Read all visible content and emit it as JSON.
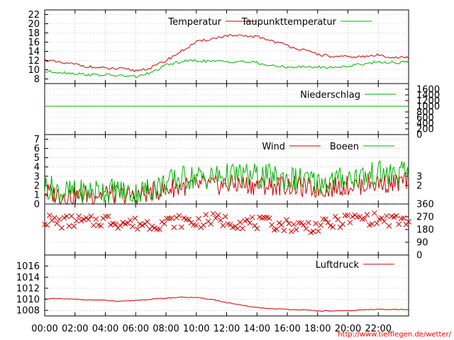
{
  "colors": {
    "red": "#cc0000",
    "green": "#00b000",
    "grid": "#999999",
    "url": "#ff0000"
  },
  "source_url": "http://www.tiefflegen.de/wetter/",
  "x_axis": {
    "domain_hours": [
      0,
      24
    ],
    "tick_labels": [
      "00:00",
      "02:00",
      "04:00",
      "06:00",
      "08:00",
      "10:00",
      "12:00",
      "14:00",
      "16:00",
      "18:00",
      "20:00",
      "22:00"
    ]
  },
  "chart_data": [
    {
      "type": "line",
      "title": "",
      "ylabel": "",
      "ylim": [
        7,
        23
      ],
      "y_ticks": [
        8,
        10,
        12,
        14,
        16,
        18,
        20,
        22
      ],
      "grid": true,
      "legend_position": "top-right",
      "series": [
        {
          "name": "Temperatur",
          "color": "#cc0000",
          "x": [
            0,
            1,
            2,
            3,
            4,
            5,
            6,
            7,
            8,
            9,
            10,
            11,
            12,
            13,
            14,
            15,
            16,
            17,
            18,
            19,
            20,
            21,
            22,
            23,
            24
          ],
          "y": [
            12.2,
            11.5,
            11.2,
            10.6,
            10.3,
            10.2,
            9.8,
            10.4,
            12.0,
            14.0,
            16.0,
            16.7,
            17.4,
            17.3,
            17.2,
            16.3,
            15.3,
            14.3,
            13.4,
            12.8,
            12.8,
            12.8,
            13.2,
            12.7,
            12.6
          ]
        },
        {
          "name": "Taupunkttemperatur",
          "color": "#00b000",
          "x": [
            0,
            1,
            2,
            3,
            4,
            5,
            6,
            7,
            8,
            9,
            10,
            11,
            12,
            13,
            14,
            15,
            16,
            17,
            18,
            19,
            20,
            21,
            22,
            23,
            24
          ],
          "y": [
            9.6,
            9.5,
            9.2,
            8.9,
            8.9,
            8.7,
            8.5,
            9.3,
            11.0,
            11.8,
            12.0,
            11.8,
            11.8,
            11.8,
            11.5,
            10.8,
            10.6,
            10.6,
            10.6,
            10.5,
            10.8,
            11.3,
            11.7,
            11.6,
            11.6
          ]
        }
      ]
    },
    {
      "type": "line",
      "title": "",
      "ylim": [
        0,
        1800
      ],
      "y_ticks_right": [
        0,
        200,
        400,
        600,
        800,
        1000,
        1200,
        1400,
        1600
      ],
      "grid": true,
      "legend_position": "top-right",
      "series": [
        {
          "name": "Niederschlag",
          "color": "#00b000",
          "x": [
            0,
            24
          ],
          "y": [
            1000,
            1000
          ]
        }
      ]
    },
    {
      "type": "line",
      "title": "",
      "ylim": [
        0,
        7.5
      ],
      "y_ticks": [
        0,
        1,
        2,
        3,
        4,
        5,
        6,
        7
      ],
      "y_ticks_right": [
        2,
        3
      ],
      "grid": true,
      "legend_position": "top-right",
      "series": [
        {
          "name": "Wind",
          "color": "#cc0000",
          "x": [
            0,
            1,
            2,
            3,
            4,
            5,
            6,
            7,
            8,
            9,
            10,
            11,
            12,
            13,
            14,
            15,
            16,
            17,
            18,
            19,
            20,
            21,
            22,
            23,
            24
          ],
          "y": [
            1.3,
            1.0,
            0.8,
            1.0,
            1.1,
            1.0,
            0.8,
            1.3,
            1.6,
            1.9,
            2.0,
            2.0,
            2.1,
            2.1,
            2.0,
            2.0,
            2.0,
            1.8,
            1.6,
            1.8,
            2.0,
            2.1,
            2.3,
            2.2,
            2.5
          ]
        },
        {
          "name": "Boeen",
          "color": "#00b000",
          "x": [
            0,
            1,
            2,
            3,
            4,
            5,
            6,
            7,
            8,
            9,
            10,
            11,
            12,
            13,
            14,
            15,
            16,
            17,
            18,
            19,
            20,
            21,
            22,
            23,
            24
          ],
          "y": [
            2.0,
            1.3,
            1.2,
            1.4,
            1.5,
            1.4,
            1.1,
            1.7,
            2.2,
            2.8,
            2.9,
            2.9,
            3.0,
            3.1,
            3.0,
            2.9,
            2.8,
            2.6,
            2.3,
            2.5,
            2.8,
            3.0,
            3.3,
            3.1,
            3.5
          ]
        }
      ]
    },
    {
      "type": "scatter",
      "title": "",
      "ylim": [
        0,
        360
      ],
      "y_ticks_right": [
        0,
        90,
        180,
        270,
        360
      ],
      "grid": true,
      "series": [
        {
          "name": "",
          "color": "#cc0000",
          "marker": "x",
          "x": [
            0,
            1,
            2,
            3,
            4,
            5,
            6,
            7,
            8,
            9,
            10,
            11,
            12,
            13,
            14,
            15,
            16,
            17,
            18,
            19,
            20,
            21,
            22,
            23,
            24
          ],
          "y": [
            250,
            230,
            240,
            230,
            250,
            230,
            220,
            220,
            230,
            240,
            230,
            250,
            240,
            230,
            225,
            220,
            210,
            205,
            200,
            225,
            250,
            260,
            250,
            240,
            240
          ]
        }
      ]
    },
    {
      "type": "line",
      "title": "",
      "ylim": [
        1007,
        1018
      ],
      "y_ticks": [
        1008,
        1010,
        1012,
        1014,
        1016
      ],
      "grid": true,
      "legend_position": "top-right",
      "series": [
        {
          "name": "Luftdruck",
          "color": "#cc0000",
          "x": [
            0,
            1,
            2,
            3,
            4,
            5,
            6,
            7,
            8,
            9,
            10,
            11,
            12,
            13,
            14,
            15,
            16,
            17,
            18,
            19,
            20,
            21,
            22,
            23,
            24
          ],
          "y": [
            1010.1,
            1010.1,
            1010.0,
            1009.9,
            1009.8,
            1009.6,
            1009.8,
            1010.0,
            1010.2,
            1010.4,
            1010.3,
            1010.0,
            1009.4,
            1008.9,
            1008.5,
            1008.3,
            1008.2,
            1008.1,
            1007.9,
            1007.9,
            1007.9,
            1008.1,
            1008.2,
            1008.2,
            1008.1
          ]
        }
      ]
    }
  ]
}
